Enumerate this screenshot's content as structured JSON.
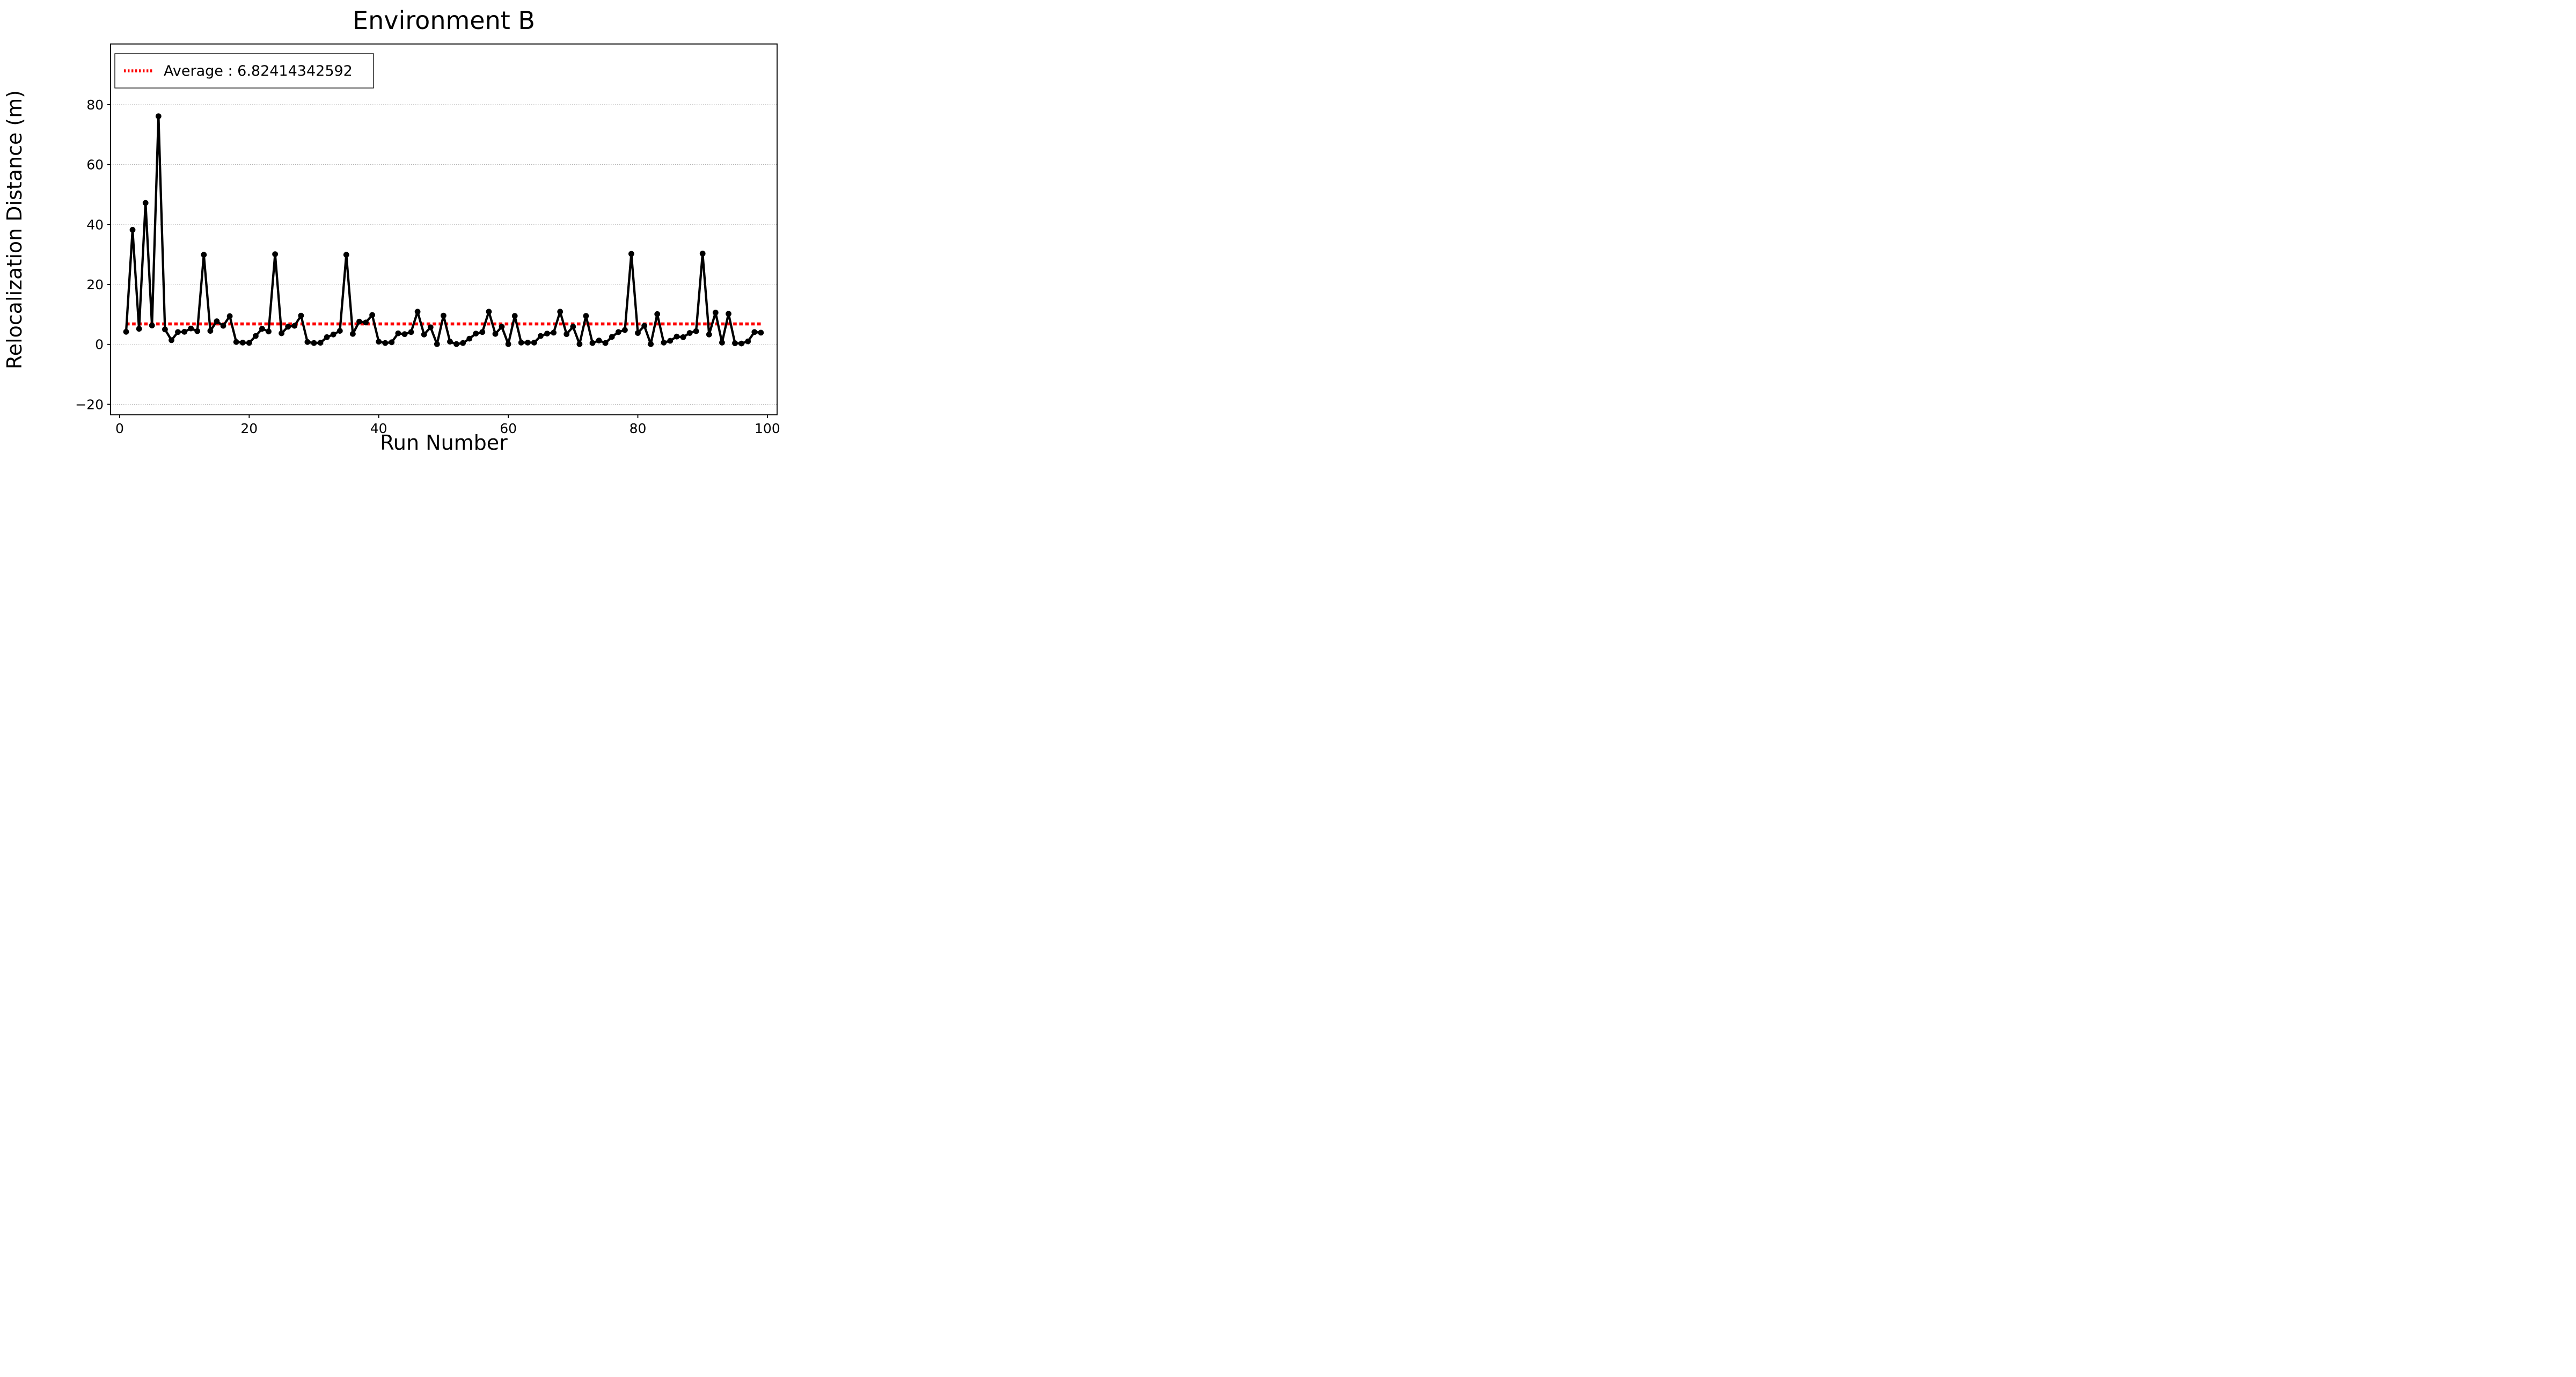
{
  "chart_data": {
    "type": "line",
    "title": "Environment B",
    "xlabel": "Run Number",
    "ylabel": "Relocalization Distance (m)",
    "legend_label": "Average : 6.82414342592",
    "legend_position": "upper-left",
    "average_value": 6.82414342592,
    "grid": "horizontal-dotted",
    "x_ticks": [
      0,
      20,
      40,
      60,
      80,
      100
    ],
    "y_ticks": [
      -20,
      0,
      20,
      40,
      60,
      80
    ],
    "xlim": [
      -1.4,
      101.5
    ],
    "ylim": [
      -23.5,
      100.2
    ],
    "colors": {
      "series": "#000000",
      "average_line": "#ff0000",
      "grid_line": "#b0b0b0",
      "spine": "#000000",
      "background": "#ffffff"
    },
    "series_name": "relocalization-distance",
    "x": [
      1,
      2,
      3,
      4,
      5,
      6,
      7,
      8,
      9,
      10,
      11,
      12,
      13,
      14,
      15,
      16,
      17,
      18,
      19,
      20,
      21,
      22,
      23,
      24,
      25,
      26,
      27,
      28,
      29,
      30,
      31,
      32,
      33,
      34,
      35,
      36,
      37,
      38,
      39,
      40,
      41,
      42,
      43,
      44,
      45,
      46,
      47,
      48,
      49,
      50,
      51,
      52,
      53,
      54,
      55,
      56,
      57,
      58,
      59,
      60,
      61,
      62,
      63,
      64,
      65,
      66,
      67,
      68,
      69,
      70,
      71,
      72,
      73,
      74,
      75,
      76,
      77,
      78,
      79,
      80,
      81,
      82,
      83,
      84,
      85,
      86,
      87,
      88,
      89,
      90,
      91,
      92,
      93,
      94,
      95,
      96,
      97,
      98,
      99
    ],
    "values": [
      4.2,
      38.2,
      5.2,
      47.2,
      6.3,
      76.1,
      5.0,
      1.4,
      4.1,
      4.2,
      5.3,
      4.4,
      29.9,
      4.5,
      7.7,
      6.2,
      9.4,
      0.8,
      0.6,
      0.5,
      2.8,
      5.2,
      4.3,
      30.1,
      3.7,
      5.9,
      6.2,
      9.6,
      0.8,
      0.45,
      0.55,
      2.4,
      3.3,
      4.5,
      29.9,
      3.5,
      7.6,
      7.3,
      9.8,
      0.9,
      0.45,
      0.7,
      3.7,
      3.4,
      4.1,
      10.9,
      3.3,
      5.7,
      0.1,
      9.6,
      0.9,
      0.1,
      0.45,
      1.9,
      3.6,
      4.1,
      10.9,
      3.5,
      5.9,
      0.1,
      9.5,
      0.6,
      0.6,
      0.6,
      2.8,
      3.6,
      3.9,
      10.9,
      3.4,
      5.9,
      0.1,
      9.5,
      0.45,
      1.3,
      0.45,
      2.5,
      4.1,
      4.8,
      30.2,
      3.8,
      6.2,
      0.1,
      10.1,
      0.6,
      1.2,
      2.6,
      2.4,
      3.8,
      4.4,
      30.3,
      3.3,
      10.6,
      0.6,
      10.2,
      0.4,
      0.3,
      1.0,
      4.1,
      3.9
    ]
  }
}
